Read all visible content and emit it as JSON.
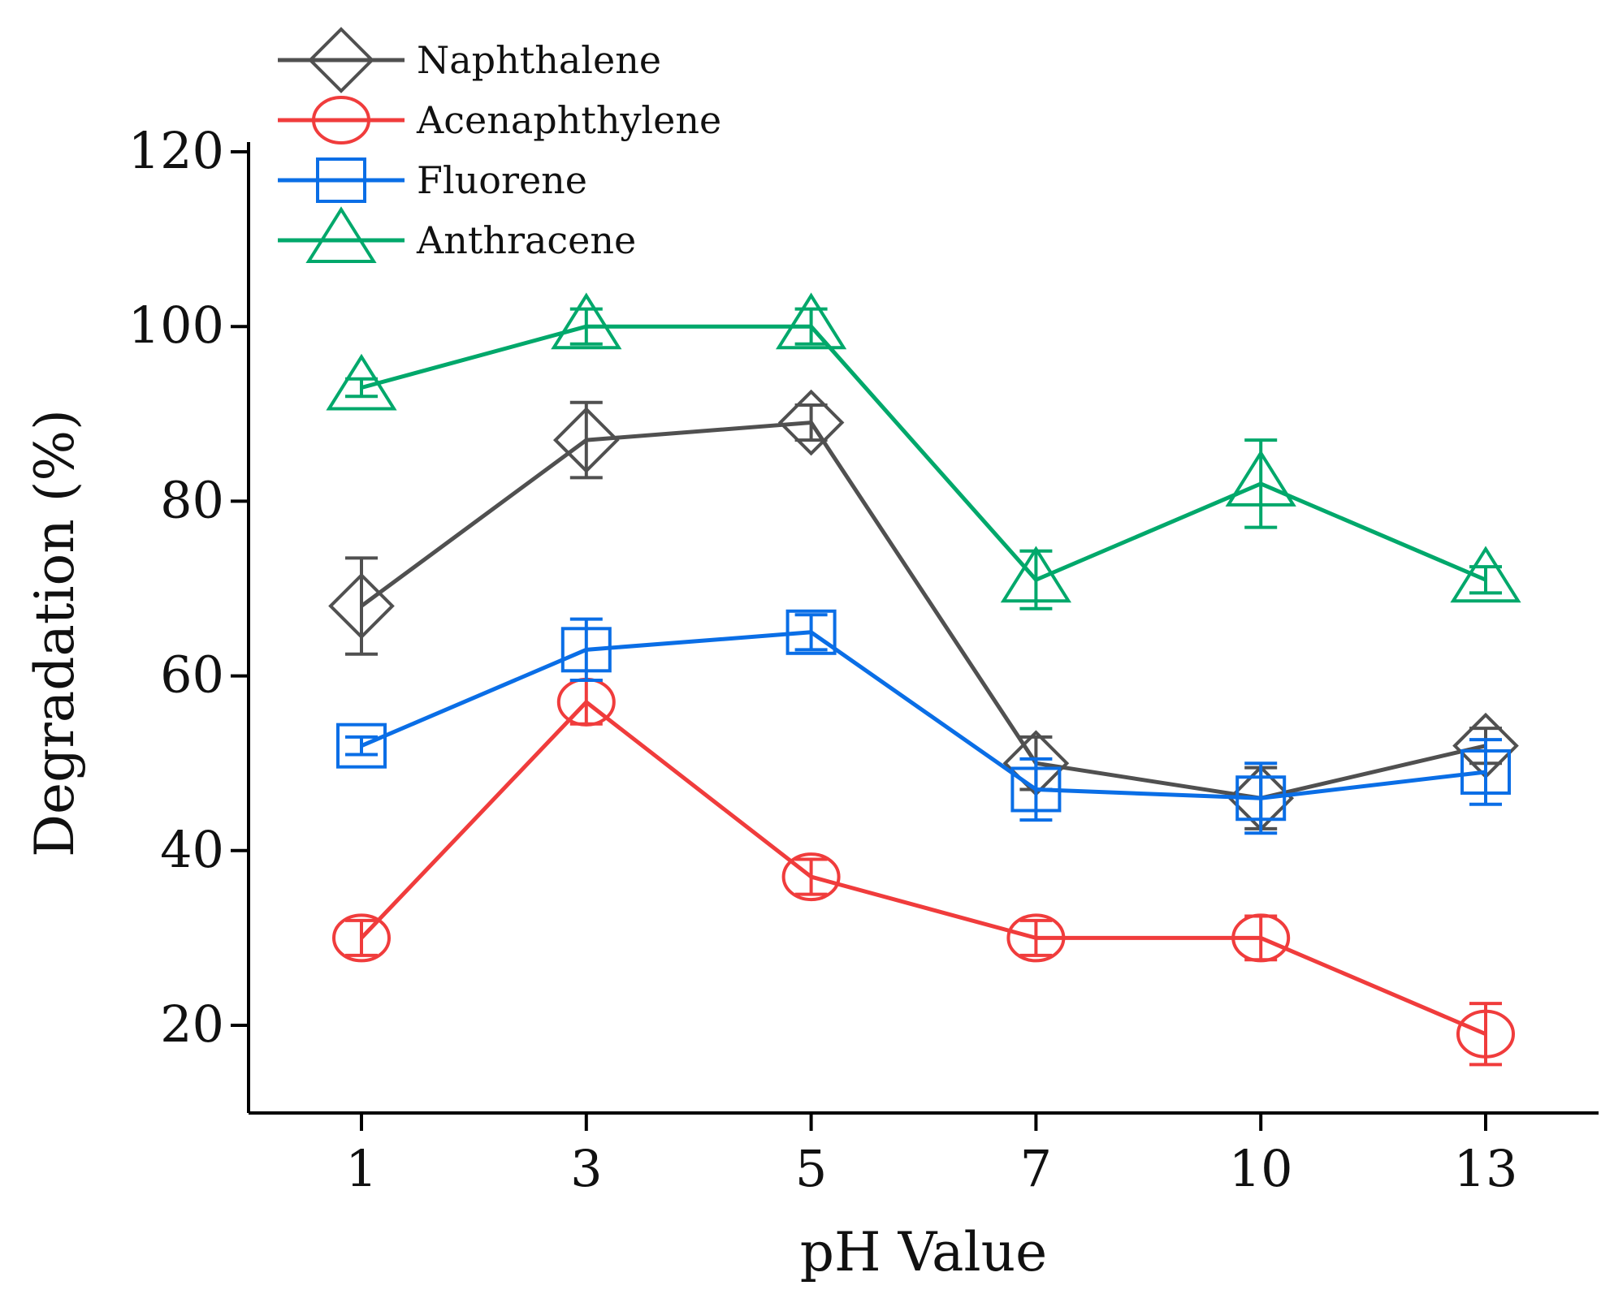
{
  "chart_data": {
    "type": "line",
    "title": "",
    "xlabel": "pH Value",
    "ylabel": "Degradation (%)",
    "categories": [
      "1",
      "3",
      "5",
      "7",
      "10",
      "13"
    ],
    "ylim": [
      10,
      120
    ],
    "yticks": [
      20,
      40,
      60,
      80,
      100,
      120
    ],
    "grid": false,
    "legend_position": "top-left",
    "series": [
      {
        "name": "Naphthalene",
        "color": "#505050",
        "marker": "diamond",
        "values": [
          68,
          87,
          89,
          50,
          46,
          52
        ],
        "errors": [
          5.5,
          4.3,
          2.0,
          3.0,
          3.5,
          2.0
        ]
      },
      {
        "name": "Acenaphthylene",
        "color": "#f03c3c",
        "marker": "circle",
        "values": [
          30,
          57,
          37,
          30,
          30,
          19
        ],
        "errors": [
          2.0,
          2.5,
          2.0,
          2.0,
          2.5,
          3.5
        ]
      },
      {
        "name": "Fluorene",
        "color": "#0a6ee6",
        "marker": "square",
        "values": [
          52,
          63,
          65,
          47,
          46,
          49
        ],
        "errors": [
          1.0,
          3.5,
          2.0,
          3.5,
          4.0,
          3.7
        ]
      },
      {
        "name": "Anthracene",
        "color": "#00a86b",
        "marker": "triangle",
        "values": [
          93,
          100,
          100,
          71,
          82,
          71
        ],
        "errors": [
          1.0,
          2.0,
          2.0,
          3.3,
          5.0,
          1.5
        ]
      }
    ]
  }
}
